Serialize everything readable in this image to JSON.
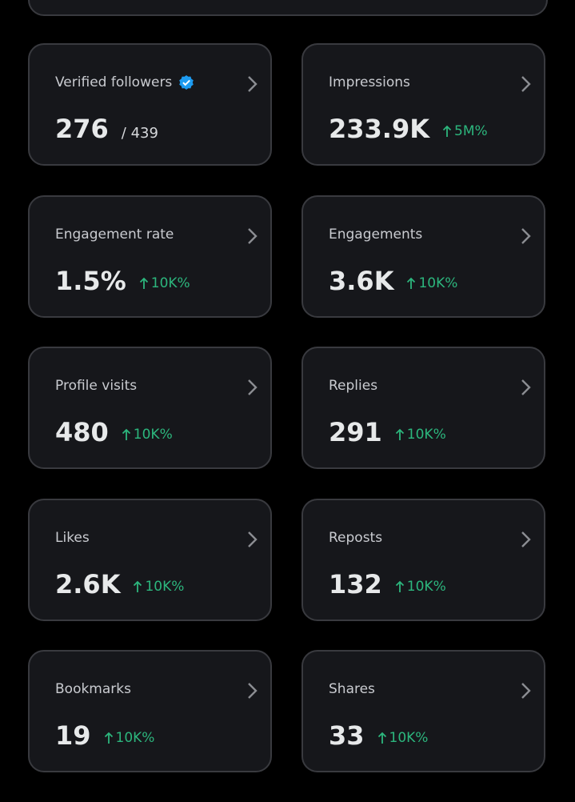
{
  "cards": [
    {
      "label": "Verified followers",
      "value": "276",
      "total": "/ 439"
    },
    {
      "label": "Impressions",
      "value": "233.9K",
      "change": "5M%"
    },
    {
      "label": "Engagement rate",
      "value": "1.5%",
      "change": "10K%"
    },
    {
      "label": "Engagements",
      "value": "3.6K",
      "change": "10K%"
    },
    {
      "label": "Profile visits",
      "value": "480",
      "change": "10K%"
    },
    {
      "label": "Replies",
      "value": "291",
      "change": "10K%"
    },
    {
      "label": "Likes",
      "value": "2.6K",
      "change": "10K%"
    },
    {
      "label": "Reposts",
      "value": "132",
      "change": "10K%"
    },
    {
      "label": "Bookmarks",
      "value": "19",
      "change": "10K%"
    },
    {
      "label": "Shares",
      "value": "33",
      "change": "10K%"
    }
  ]
}
